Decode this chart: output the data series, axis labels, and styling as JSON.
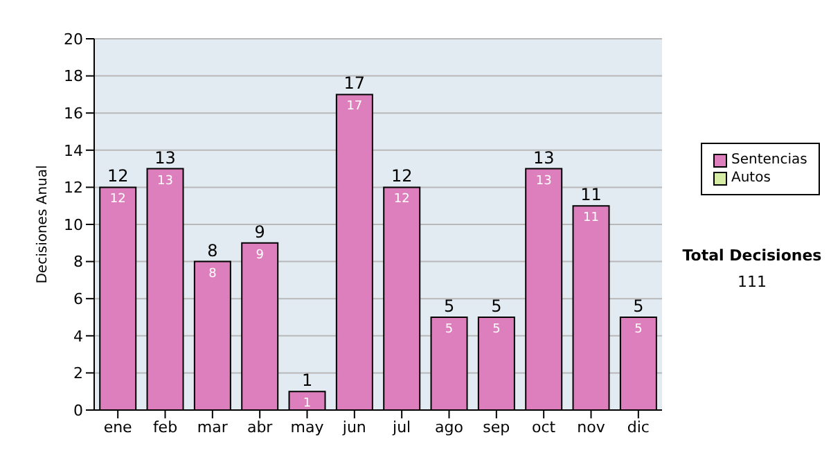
{
  "chart_data": {
    "type": "bar",
    "ylabel": "Decisiones Anual",
    "categories": [
      "ene",
      "feb",
      "mar",
      "abr",
      "may",
      "jun",
      "jul",
      "ago",
      "sep",
      "oct",
      "nov",
      "dic"
    ],
    "series": [
      {
        "name": "Sentencias",
        "color": "#de7fbd",
        "values": [
          12,
          13,
          8,
          9,
          1,
          17,
          12,
          5,
          5,
          13,
          11,
          5
        ],
        "value_labels": [
          "12",
          "13",
          "8",
          "9",
          "1",
          "17",
          "12",
          "5",
          "5",
          "13",
          "11",
          "5"
        ]
      },
      {
        "name": "Autos",
        "color": "#d6eba4",
        "values": [
          0,
          0,
          0,
          0,
          0,
          0,
          0,
          0,
          0,
          0,
          0,
          0
        ],
        "value_labels": [
          null,
          null,
          null,
          null,
          null,
          null,
          null,
          null,
          null,
          null,
          null,
          null
        ]
      }
    ],
    "stacked": true,
    "totals": [
      "12",
      "13",
      "8",
      "9",
      "1",
      "17",
      "12",
      "5",
      "5",
      "13",
      "11",
      "5"
    ],
    "ylim": [
      0,
      20
    ],
    "yticks": [
      0,
      2,
      4,
      6,
      8,
      10,
      12,
      14,
      16,
      18,
      20
    ],
    "grid": "y",
    "legend": "right",
    "annotations": [
      "Total Decisiones",
      "111"
    ]
  }
}
